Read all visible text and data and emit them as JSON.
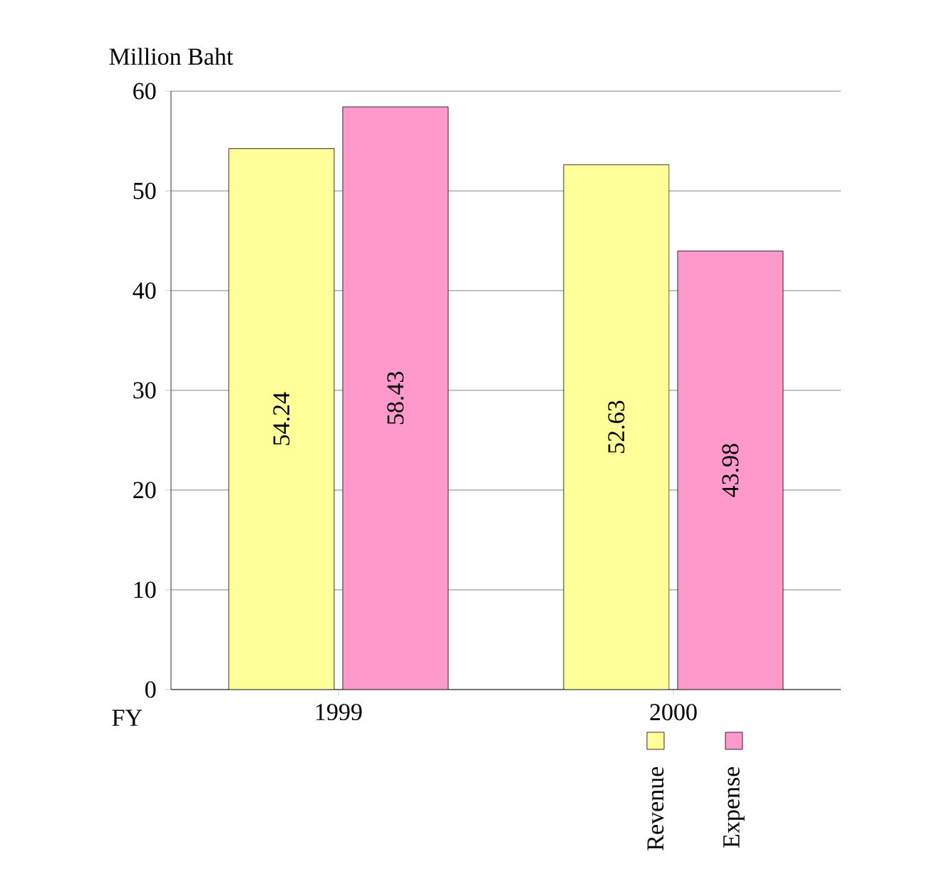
{
  "chart_data": {
    "type": "bar",
    "ylabel": "Million Baht",
    "xlabel": "FY",
    "categories": [
      "1999",
      "2000"
    ],
    "series": [
      {
        "name": "Revenue",
        "color": "#ffff99",
        "values": [
          54.24,
          52.63
        ]
      },
      {
        "name": "Expense",
        "color": "#ff99cc",
        "values": [
          58.43,
          43.98
        ]
      }
    ],
    "ylim": [
      0,
      60
    ],
    "yticks": [
      0,
      10,
      20,
      30,
      40,
      50,
      60
    ],
    "grid": "y",
    "data_labels": true,
    "legend": "bottom right"
  }
}
